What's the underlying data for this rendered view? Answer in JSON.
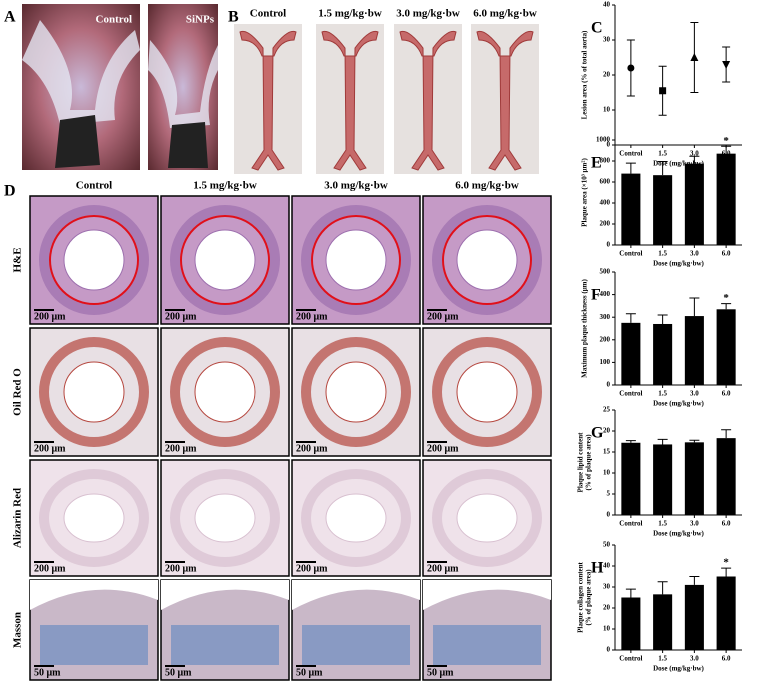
{
  "figure_a": {
    "label": "A",
    "images": [
      "Control",
      "SiNPs"
    ]
  },
  "figure_b": {
    "label": "B",
    "columns": [
      "Control",
      "1.5 mg/kg·bw",
      "3.0 mg/kg·bw",
      "6.0 mg/kg·bw"
    ]
  },
  "figure_d": {
    "label": "D",
    "columns": [
      "Control",
      "1.5 mg/kg·bw",
      "3.0 mg/kg·bw",
      "6.0 mg/kg·bw"
    ],
    "rows": [
      "H&E",
      "Oil Red O",
      "Alizarin Red",
      "Masson"
    ],
    "scale_bars": [
      "200 μm",
      "50 μm"
    ]
  },
  "chart_data": [
    {
      "label": "C",
      "type": "scatter",
      "y_label": [
        "Lesion area (% of total aorta)"
      ],
      "x_label": "Dose (mg/kg·bw)",
      "categories": [
        "Control",
        "1.5",
        "3.0",
        "6.0"
      ],
      "values": [
        22,
        15.5,
        25,
        23
      ],
      "errors": [
        8,
        7,
        10,
        5
      ],
      "markers": [
        "circle",
        "square",
        "triangle",
        "triangle-down"
      ],
      "color": "#000000",
      "ylim": [
        0,
        40
      ],
      "yticks": [
        0,
        10,
        20,
        30,
        40
      ]
    },
    {
      "label": "E",
      "type": "bar",
      "y_label": [
        "Plaque area (×10³ μm²)"
      ],
      "x_label": "Dose (mg/kg·bw)",
      "categories": [
        "Control",
        "1.5",
        "3.0",
        "6.0"
      ],
      "values": [
        680,
        665,
        775,
        870
      ],
      "errors": [
        100,
        130,
        70,
        70
      ],
      "significance": [
        null,
        null,
        null,
        "*"
      ],
      "color": "#000000",
      "ylim": [
        0,
        1000
      ],
      "yticks": [
        0,
        200,
        400,
        600,
        800,
        1000
      ]
    },
    {
      "label": "F",
      "type": "bar",
      "y_label": [
        "Maximum plaque thickness (μm)"
      ],
      "x_label": "Dose (mg/kg·bw)",
      "categories": [
        "Control",
        "1.5",
        "3.0",
        "6.0"
      ],
      "values": [
        275,
        270,
        305,
        335
      ],
      "errors": [
        40,
        40,
        80,
        25
      ],
      "significance": [
        null,
        null,
        null,
        "*"
      ],
      "color": "#000000",
      "ylim": [
        0,
        500
      ],
      "yticks": [
        0,
        100,
        200,
        300,
        400,
        500
      ]
    },
    {
      "label": "G",
      "type": "bar",
      "y_label": [
        "Plaque lipid content",
        "(% of plaque area)"
      ],
      "x_label": "Dose (mg/kg·bw)",
      "categories": [
        "Control",
        "1.5",
        "3.0",
        "6.0"
      ],
      "values": [
        17.2,
        16.8,
        17.3,
        18.3
      ],
      "errors": [
        0.5,
        1.2,
        0.5,
        2
      ],
      "significance": [
        null,
        null,
        null,
        null
      ],
      "color": "#000000",
      "ylim": [
        0,
        25
      ],
      "yticks": [
        0,
        5,
        10,
        15,
        20,
        25
      ]
    },
    {
      "label": "H",
      "type": "bar",
      "y_label": [
        "Plaque collagen content",
        "(% of plaque area)"
      ],
      "x_label": "Dose (mg/kg·bw)",
      "categories": [
        "Control",
        "1.5",
        "3.0",
        "6.0"
      ],
      "values": [
        25,
        26.5,
        31,
        35
      ],
      "errors": [
        4,
        6,
        4,
        4
      ],
      "significance": [
        null,
        null,
        null,
        "*"
      ],
      "color": "#000000",
      "ylim": [
        0,
        50
      ],
      "yticks": [
        0,
        10,
        20,
        30,
        40,
        50
      ]
    }
  ]
}
